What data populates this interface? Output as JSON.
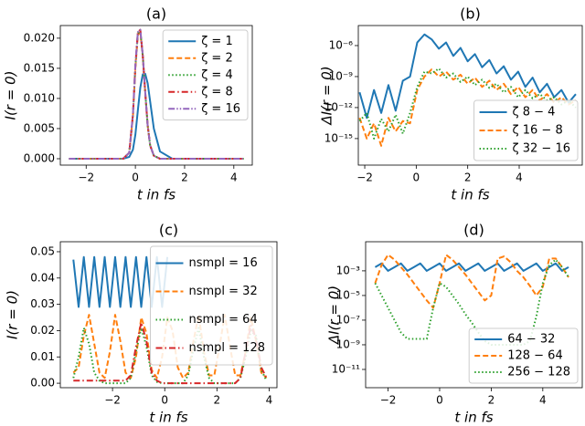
{
  "chart_data": [
    {
      "type": "line",
      "title": "(a)",
      "xlabel": "t in fs",
      "ylabel": "I(r = 0)",
      "legend": "upper right",
      "xlim": [
        -3.05,
        4.75
      ],
      "ylim": [
        -0.00106,
        0.0221
      ],
      "xticks": [
        {
          "value": -2,
          "label": "−2"
        },
        0,
        2,
        4
      ],
      "yticks": [
        {
          "value": 0,
          "label": "0.000"
        },
        0.005,
        {
          "value": 0.01,
          "label": "0.010"
        },
        0.015,
        {
          "value": 0.02,
          "label": "0.020"
        }
      ],
      "x": [
        -2.7,
        -2,
        -1.5,
        -1,
        -0.5,
        -0.25,
        -0.1,
        0,
        0.1,
        0.2,
        0.3,
        0.4,
        0.5,
        0.6,
        0.75,
        1,
        1.5,
        2,
        3,
        4,
        4.4
      ],
      "series": [
        {
          "name": "ζ = 1",
          "color": "#1f77b4",
          "linestyle": "-",
          "values": [
            0,
            0,
            0,
            0,
            0,
            0.0003,
            0.0015,
            0.004,
            0.008,
            0.0118,
            0.014,
            0.0141,
            0.0125,
            0.0095,
            0.005,
            0.0012,
            0,
            0,
            0,
            0,
            0
          ]
        },
        {
          "name": "ζ = 2",
          "color": "#ff7f0e",
          "linestyle": "--",
          "values": [
            0,
            0,
            0,
            0,
            0,
            0.001,
            0.007,
            0.015,
            0.0205,
            0.021,
            0.017,
            0.011,
            0.0055,
            0.0022,
            0.0005,
            0,
            0,
            0,
            0,
            0,
            0
          ]
        },
        {
          "name": "ζ = 4",
          "color": "#2ca02c",
          "linestyle": ":",
          "values": [
            0,
            0,
            0,
            0,
            0,
            0.001,
            0.0072,
            0.0153,
            0.0208,
            0.0212,
            0.0171,
            0.011,
            0.0055,
            0.0022,
            0.0005,
            0,
            0,
            0,
            0,
            0,
            0
          ]
        },
        {
          "name": "ζ = 8",
          "color": "#d62728",
          "linestyle": "-.",
          "values": [
            0,
            0,
            0,
            0,
            0,
            0.001,
            0.0073,
            0.0155,
            0.021,
            0.0214,
            0.0172,
            0.011,
            0.0055,
            0.0022,
            0.0005,
            0,
            0,
            0,
            0,
            0,
            0
          ]
        },
        {
          "name": "ζ = 16",
          "color": "#9467bd",
          "linestyle": "-..",
          "values": [
            0,
            0,
            0,
            0,
            0,
            0.001,
            0.0073,
            0.0155,
            0.021,
            0.0214,
            0.0172,
            0.011,
            0.0055,
            0.0022,
            0.0005,
            0,
            0,
            0,
            0,
            0,
            0
          ]
        }
      ]
    },
    {
      "type": "line",
      "title": "(b)",
      "xlabel": "t in fs",
      "ylabel": "ΔI(r = 0)",
      "legend": "lower right",
      "yscale": "log",
      "xlim": [
        -2.25,
        6.45
      ],
      "ylim": [
        2.7e-18,
        8.7e-05
      ],
      "xticks": [
        {
          "value": -2,
          "label": "−2"
        },
        0,
        2,
        4
      ],
      "yticks": [
        {
          "value": 1e-06,
          "label": "10⁻⁶"
        },
        {
          "value": 1e-09,
          "label": "10⁻⁹"
        },
        {
          "value": 1e-12,
          "label": "10⁻¹²"
        },
        {
          "value": 1e-15,
          "label": "10⁻¹⁵"
        }
      ],
      "x": [
        -2.2,
        -1.92,
        -1.64,
        -1.36,
        -1.08,
        -0.8,
        -0.52,
        -0.24,
        0.04,
        0.32,
        0.6,
        0.88,
        1.16,
        1.44,
        1.72,
        2,
        2.28,
        2.56,
        2.84,
        3.12,
        3.4,
        3.68,
        3.96,
        4.24,
        4.52,
        4.8,
        5.08,
        5.36,
        5.64,
        5.92,
        6.2
      ],
      "series": [
        {
          "name": "ζ 8 − 4",
          "color": "#1f77b4",
          "linestyle": "-",
          "values": [
            3e-11,
            1e-13,
            5e-11,
            3e-13,
            1.5e-10,
            5e-13,
            4e-10,
            1e-09,
            2e-06,
            1.2e-05,
            4e-06,
            5e-07,
            2e-06,
            1e-07,
            6e-07,
            3e-08,
            1.5e-07,
            8e-09,
            4e-08,
            2e-09,
            1e-08,
            5e-10,
            3e-09,
            1e-10,
            8e-10,
            3e-11,
            2e-10,
            1e-11,
            5e-11,
            3e-12,
            2e-11
          ]
        },
        {
          "name": "ζ 16 − 8",
          "color": "#ff7f0e",
          "linestyle": "--",
          "values": [
            1e-13,
            1e-15,
            3e-14,
            2e-16,
            1e-13,
            5e-15,
            5e-14,
            3e-14,
            5e-11,
            1e-09,
            5e-09,
            1e-09,
            3e-09,
            5e-10,
            1.5e-09,
            2e-10,
            8e-10,
            1e-10,
            4e-10,
            5e-11,
            2e-10,
            2e-11,
            1e-10,
            1e-11,
            5e-11,
            5e-12,
            2e-11,
            3e-12,
            1e-11,
            2e-12,
            5e-12
          ]
        },
        {
          "name": "ζ 32 − 16",
          "color": "#2ca02c",
          "linestyle": ":",
          "values": [
            5e-14,
            3e-13,
            1e-15,
            8e-14,
            5e-15,
            2e-13,
            3e-15,
            3e-13,
            1e-10,
            3e-09,
            2e-09,
            6e-09,
            8e-10,
            2e-09,
            3e-10,
            1e-09,
            1.5e-10,
            5e-10,
            8e-11,
            2e-10,
            3e-11,
            1e-10,
            1e-11,
            5e-11,
            8e-12,
            2e-11,
            5e-12,
            1e-11,
            2e-12,
            5e-12,
            1e-12
          ]
        }
      ]
    },
    {
      "type": "line",
      "title": "(c)",
      "xlabel": "t in fs",
      "ylabel": "I(r = 0)",
      "legend": "upper right",
      "xlim": [
        -4.0,
        4.3
      ],
      "ylim": [
        -0.0017,
        0.0538
      ],
      "xticks": [
        {
          "value": -2,
          "label": "−2"
        },
        0,
        2,
        4
      ],
      "yticks": [
        {
          "value": 0,
          "label": "0.00"
        },
        0.01,
        0.02,
        0.03,
        0.04,
        0.05
      ],
      "x": [
        -3.5,
        -3.3,
        -3.1,
        -2.9,
        -2.7,
        -2.5,
        -2.3,
        -2.1,
        -1.9,
        -1.7,
        -1.5,
        -1.3,
        -1.1,
        -0.9,
        -0.7,
        -0.5,
        -0.3,
        -0.1,
        0.1,
        0.3,
        0.5,
        0.7,
        0.9,
        1.1,
        1.3,
        1.5,
        1.7,
        1.9,
        2.1,
        2.3,
        2.5,
        2.7,
        2.9,
        3.1,
        3.3,
        3.5,
        3.7,
        3.9
      ],
      "series": [
        {
          "name": "nsmpl = 16",
          "color": "#1f77b4",
          "linestyle": "-",
          "values": [
            0.047,
            0.029,
            0.048,
            0.029,
            0.048,
            0.029,
            0.048,
            0.029,
            0.048,
            0.029,
            0.048,
            0.029,
            0.048,
            0.029,
            0.048,
            0.029,
            0.048,
            0.029,
            0.048,
            null,
            null,
            null,
            null,
            null,
            null,
            null,
            null,
            null,
            null,
            null,
            null,
            null,
            null,
            null,
            null,
            null,
            null,
            null
          ]
        },
        {
          "name": "nsmpl = 32",
          "color": "#ff7f0e",
          "linestyle": "--",
          "values": [
            0.004,
            0.006,
            0.018,
            0.026,
            0.015,
            0.004,
            0.002,
            0.012,
            0.026,
            0.016,
            0.004,
            0.002,
            0.01,
            0.025,
            0.019,
            0.005,
            0.002,
            0.01,
            0.025,
            0.02,
            0.006,
            0.002,
            0.004,
            0.016,
            0.026,
            0.012,
            0.003,
            0.003,
            0.014,
            0.026,
            0.014,
            0.003,
            0.003,
            0.012,
            0.025,
            0.016,
            0.004,
            0.002
          ]
        },
        {
          "name": "nsmpl = 64",
          "color": "#2ca02c",
          "linestyle": ":",
          "values": [
            0.002,
            0.01,
            0.021,
            0.015,
            0.004,
            0.001,
            0,
            0,
            0,
            0,
            0,
            0.002,
            0.012,
            0.021,
            0.014,
            0.003,
            0.0005,
            0,
            0,
            0,
            0,
            0,
            0.003,
            0.013,
            0.021,
            0.01,
            0.002,
            0,
            0,
            0,
            0,
            0,
            0.002,
            0.01,
            0.02,
            0.018,
            0.005,
            0.001
          ]
        },
        {
          "name": "nsmpl = 128",
          "color": "#d62728",
          "linestyle": "-.",
          "values": [
            0.001,
            0.001,
            0.001,
            0.001,
            0.001,
            0.001,
            0.001,
            0.001,
            0.001,
            0.001,
            0.001,
            0.003,
            0.014,
            0.023,
            0.016,
            0.004,
            0.001,
            0,
            0,
            0,
            0,
            0,
            0,
            0,
            0,
            0,
            0,
            0,
            0,
            0,
            0,
            0,
            0.002,
            0.012,
            0.022,
            0.017,
            0.006,
            0.002
          ]
        }
      ]
    },
    {
      "type": "line",
      "title": "(d)",
      "xlabel": "t in fs",
      "ylabel": "ΔI(r = 0)",
      "legend": "lower right",
      "yscale": "log",
      "xlim": [
        -2.87,
        5.53
      ],
      "ylim": [
        3.3e-13,
        0.23
      ],
      "xticks": [
        {
          "value": -2,
          "label": "−2"
        },
        0,
        2,
        4
      ],
      "yticks": [
        {
          "value": 0.001,
          "label": "10⁻³"
        },
        {
          "value": 1e-05,
          "label": "10⁻⁵"
        },
        {
          "value": 1e-07,
          "label": "10⁻⁷"
        },
        {
          "value": 1e-09,
          "label": "10⁻⁹"
        },
        {
          "value": 1e-11,
          "label": "10⁻¹¹"
        }
      ],
      "x": [
        -2.5,
        -2.25,
        -2,
        -1.75,
        -1.5,
        -1.25,
        -1,
        -0.75,
        -0.5,
        -0.25,
        0,
        0.25,
        0.5,
        0.75,
        1,
        1.25,
        1.5,
        1.75,
        2,
        2.25,
        2.5,
        2.75,
        3,
        3.25,
        3.5,
        3.75,
        4,
        4.25,
        4.5,
        4.75,
        5
      ],
      "series": [
        {
          "name": "64 − 32",
          "color": "#1f77b4",
          "linestyle": "-",
          "values": [
            0.002,
            0.004,
            0.001,
            0.002,
            0.004,
            0.001,
            0.002,
            0.004,
            0.001,
            0.002,
            0.004,
            0.001,
            0.002,
            0.004,
            0.001,
            0.002,
            0.004,
            0.001,
            0.002,
            0.004,
            0.001,
            0.002,
            0.004,
            0.001,
            0.002,
            0.004,
            0.001,
            0.002,
            0.004,
            0.001,
            0.002
          ]
        },
        {
          "name": "128 − 64",
          "color": "#ff7f0e",
          "linestyle": "--",
          "values": [
            0.0001,
            0.003,
            0.02,
            0.008,
            0.002,
            0.0005,
            0.0001,
            2e-05,
            4e-06,
            1e-06,
            0.0001,
            0.02,
            0.008,
            0.002,
            0.0005,
            0.0001,
            2e-05,
            4e-06,
            1e-05,
            0.01,
            0.015,
            0.005,
            0.001,
            0.0003,
            6e-05,
            1e-05,
            5e-05,
            0.01,
            0.01,
            0.002,
            0.0003
          ]
        },
        {
          "name": "256 − 128",
          "color": "#2ca02c",
          "linestyle": ":",
          "values": [
            0.0001,
            1e-05,
            1e-06,
            1e-07,
            1e-08,
            3e-09,
            3e-09,
            3e-09,
            3e-09,
            1e-06,
            0.0001,
            5e-05,
            1e-05,
            2e-06,
            3e-07,
            6e-08,
            1e-08,
            2e-09,
            1e-09,
            1e-09,
            1e-09,
            1e-09,
            1e-09,
            1e-09,
            2e-09,
            2e-07,
            0.0001,
            0.003,
            0.008,
            0.002,
            0.0003
          ]
        }
      ]
    }
  ]
}
